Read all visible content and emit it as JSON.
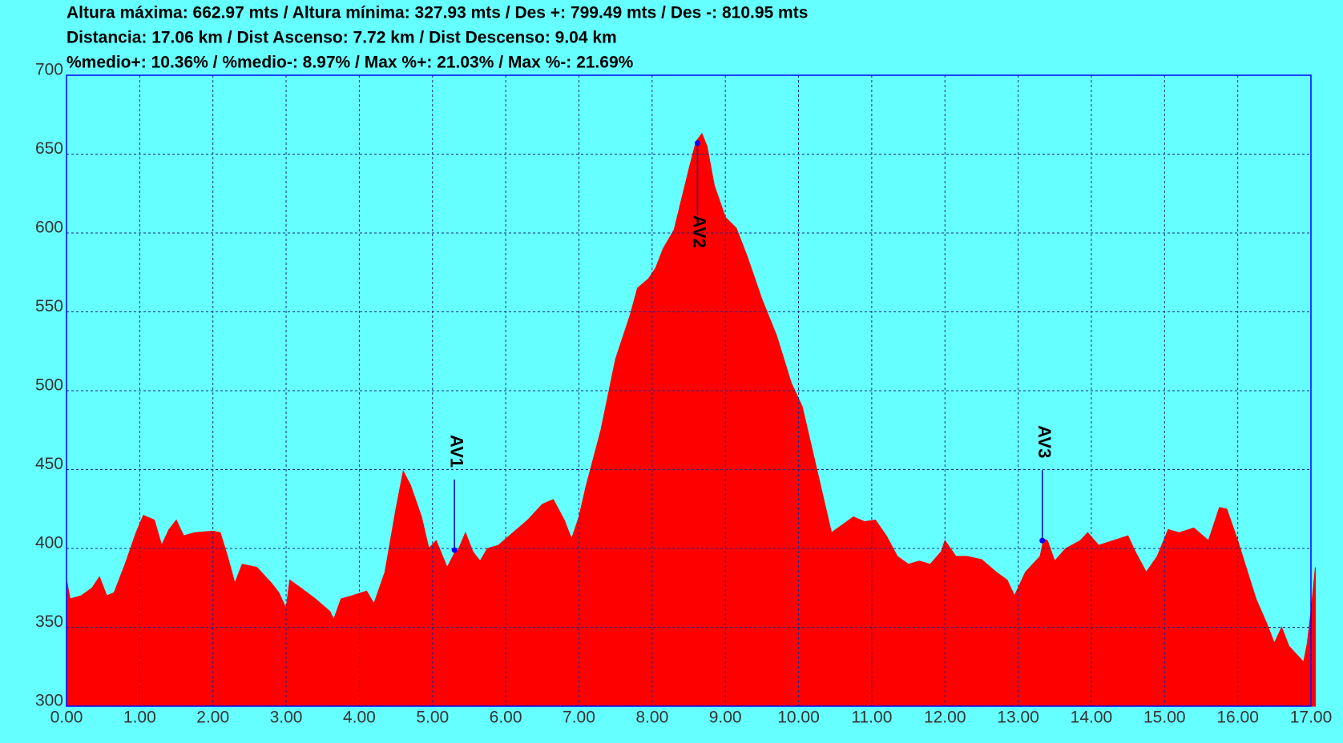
{
  "chart_data": {
    "type": "area",
    "stats": [
      "Altura máxima: 662.97 mts / Altura mínima: 327.93 mts / Des +: 799.49 mts / Des -: 810.95 mts",
      "Distancia: 17.06 km / Dist Ascenso: 7.72 km / Dist Descenso: 9.04 km",
      "%medio+: 10.36% / %medio-: 8.97% / Max %+: 21.03% / Max %-: 21.69%"
    ],
    "color": "#ff0000",
    "grid": true,
    "x": [
      0,
      0.05,
      0.2,
      0.35,
      0.45,
      0.55,
      0.65,
      0.8,
      0.95,
      1.05,
      1.2,
      1.3,
      1.4,
      1.5,
      1.6,
      1.75,
      2.0,
      2.1,
      2.2,
      2.3,
      2.4,
      2.6,
      2.8,
      2.9,
      3.0,
      3.05,
      3.2,
      3.4,
      3.5,
      3.6,
      3.65,
      3.75,
      3.9,
      4.1,
      4.2,
      4.35,
      4.5,
      4.6,
      4.7,
      4.85,
      4.95,
      5.05,
      5.2,
      5.3,
      5.35,
      5.45,
      5.55,
      5.65,
      5.75,
      5.9,
      6.1,
      6.3,
      6.5,
      6.65,
      6.8,
      6.9,
      7.0,
      7.1,
      7.3,
      7.5,
      7.7,
      7.8,
      7.95,
      8.05,
      8.15,
      8.3,
      8.5,
      8.6,
      8.68,
      8.75,
      8.85,
      9.0,
      9.15,
      9.3,
      9.5,
      9.7,
      9.9,
      10.05,
      10.2,
      10.35,
      10.45,
      10.6,
      10.75,
      10.9,
      11.05,
      11.2,
      11.35,
      11.5,
      11.65,
      11.8,
      11.95,
      12.0,
      12.15,
      12.3,
      12.5,
      12.7,
      12.85,
      12.95,
      13.1,
      13.3,
      13.35,
      13.4,
      13.5,
      13.65,
      13.85,
      13.95,
      14.1,
      14.3,
      14.5,
      14.6,
      14.75,
      14.9,
      15.05,
      15.2,
      15.4,
      15.6,
      15.75,
      15.85,
      16.0,
      16.1,
      16.25,
      16.4,
      16.5,
      16.6,
      16.7,
      16.8,
      16.9,
      16.95,
      17.0,
      17.06
    ],
    "values": [
      380,
      368,
      370,
      375,
      382,
      370,
      372,
      390,
      410,
      421,
      418,
      402,
      412,
      418,
      408,
      410,
      411,
      410,
      395,
      378,
      390,
      388,
      378,
      372,
      362,
      380,
      375,
      368,
      364,
      360,
      355,
      368,
      370,
      373,
      365,
      385,
      425,
      449,
      440,
      420,
      400,
      405,
      388,
      397,
      399,
      410,
      398,
      392,
      400,
      402,
      410,
      418,
      428,
      431,
      418,
      406,
      420,
      440,
      475,
      520,
      548,
      565,
      571,
      578,
      590,
      602,
      640,
      658,
      663,
      655,
      630,
      610,
      603,
      585,
      558,
      535,
      505,
      490,
      460,
      430,
      410,
      415,
      420,
      417,
      418,
      408,
      395,
      390,
      392,
      390,
      398,
      405,
      395,
      395,
      393,
      385,
      380,
      370,
      385,
      395,
      406,
      405,
      392,
      400,
      405,
      410,
      402,
      405,
      408,
      398,
      385,
      395,
      412,
      410,
      413,
      405,
      426,
      425,
      405,
      390,
      368,
      352,
      340,
      350,
      338,
      333,
      328,
      340,
      360,
      388
    ],
    "annotations": [
      {
        "text": "AV1",
        "x": 5.3,
        "y": 399
      },
      {
        "text": "AV2",
        "x": 8.62,
        "y": 657
      },
      {
        "text": "AV3",
        "x": 13.33,
        "y": 405
      }
    ],
    "xlim": [
      0,
      17
    ],
    "xticks": [
      {
        "value": 0,
        "label": "0.00"
      },
      {
        "value": 1,
        "label": "1.00"
      },
      {
        "value": 2,
        "label": "2.00"
      },
      {
        "value": 3,
        "label": "3.00"
      },
      {
        "value": 4,
        "label": "4.00"
      },
      {
        "value": 5,
        "label": "5.00"
      },
      {
        "value": 6,
        "label": "6.00"
      },
      {
        "value": 7,
        "label": "7.00"
      },
      {
        "value": 8,
        "label": "8.00"
      },
      {
        "value": 9,
        "label": "9.00"
      },
      {
        "value": 10,
        "label": "10.00"
      },
      {
        "value": 11,
        "label": "11.00"
      },
      {
        "value": 12,
        "label": "12.00"
      },
      {
        "value": 13,
        "label": "13.00"
      },
      {
        "value": 14,
        "label": "14.00"
      },
      {
        "value": 15,
        "label": "15.00"
      },
      {
        "value": 16,
        "label": "16.00"
      },
      {
        "value": 17,
        "label": "17.00"
      }
    ],
    "ylim": [
      300,
      700
    ],
    "yticks": [
      300,
      350,
      400,
      450,
      500,
      550,
      600,
      650,
      700
    ]
  }
}
